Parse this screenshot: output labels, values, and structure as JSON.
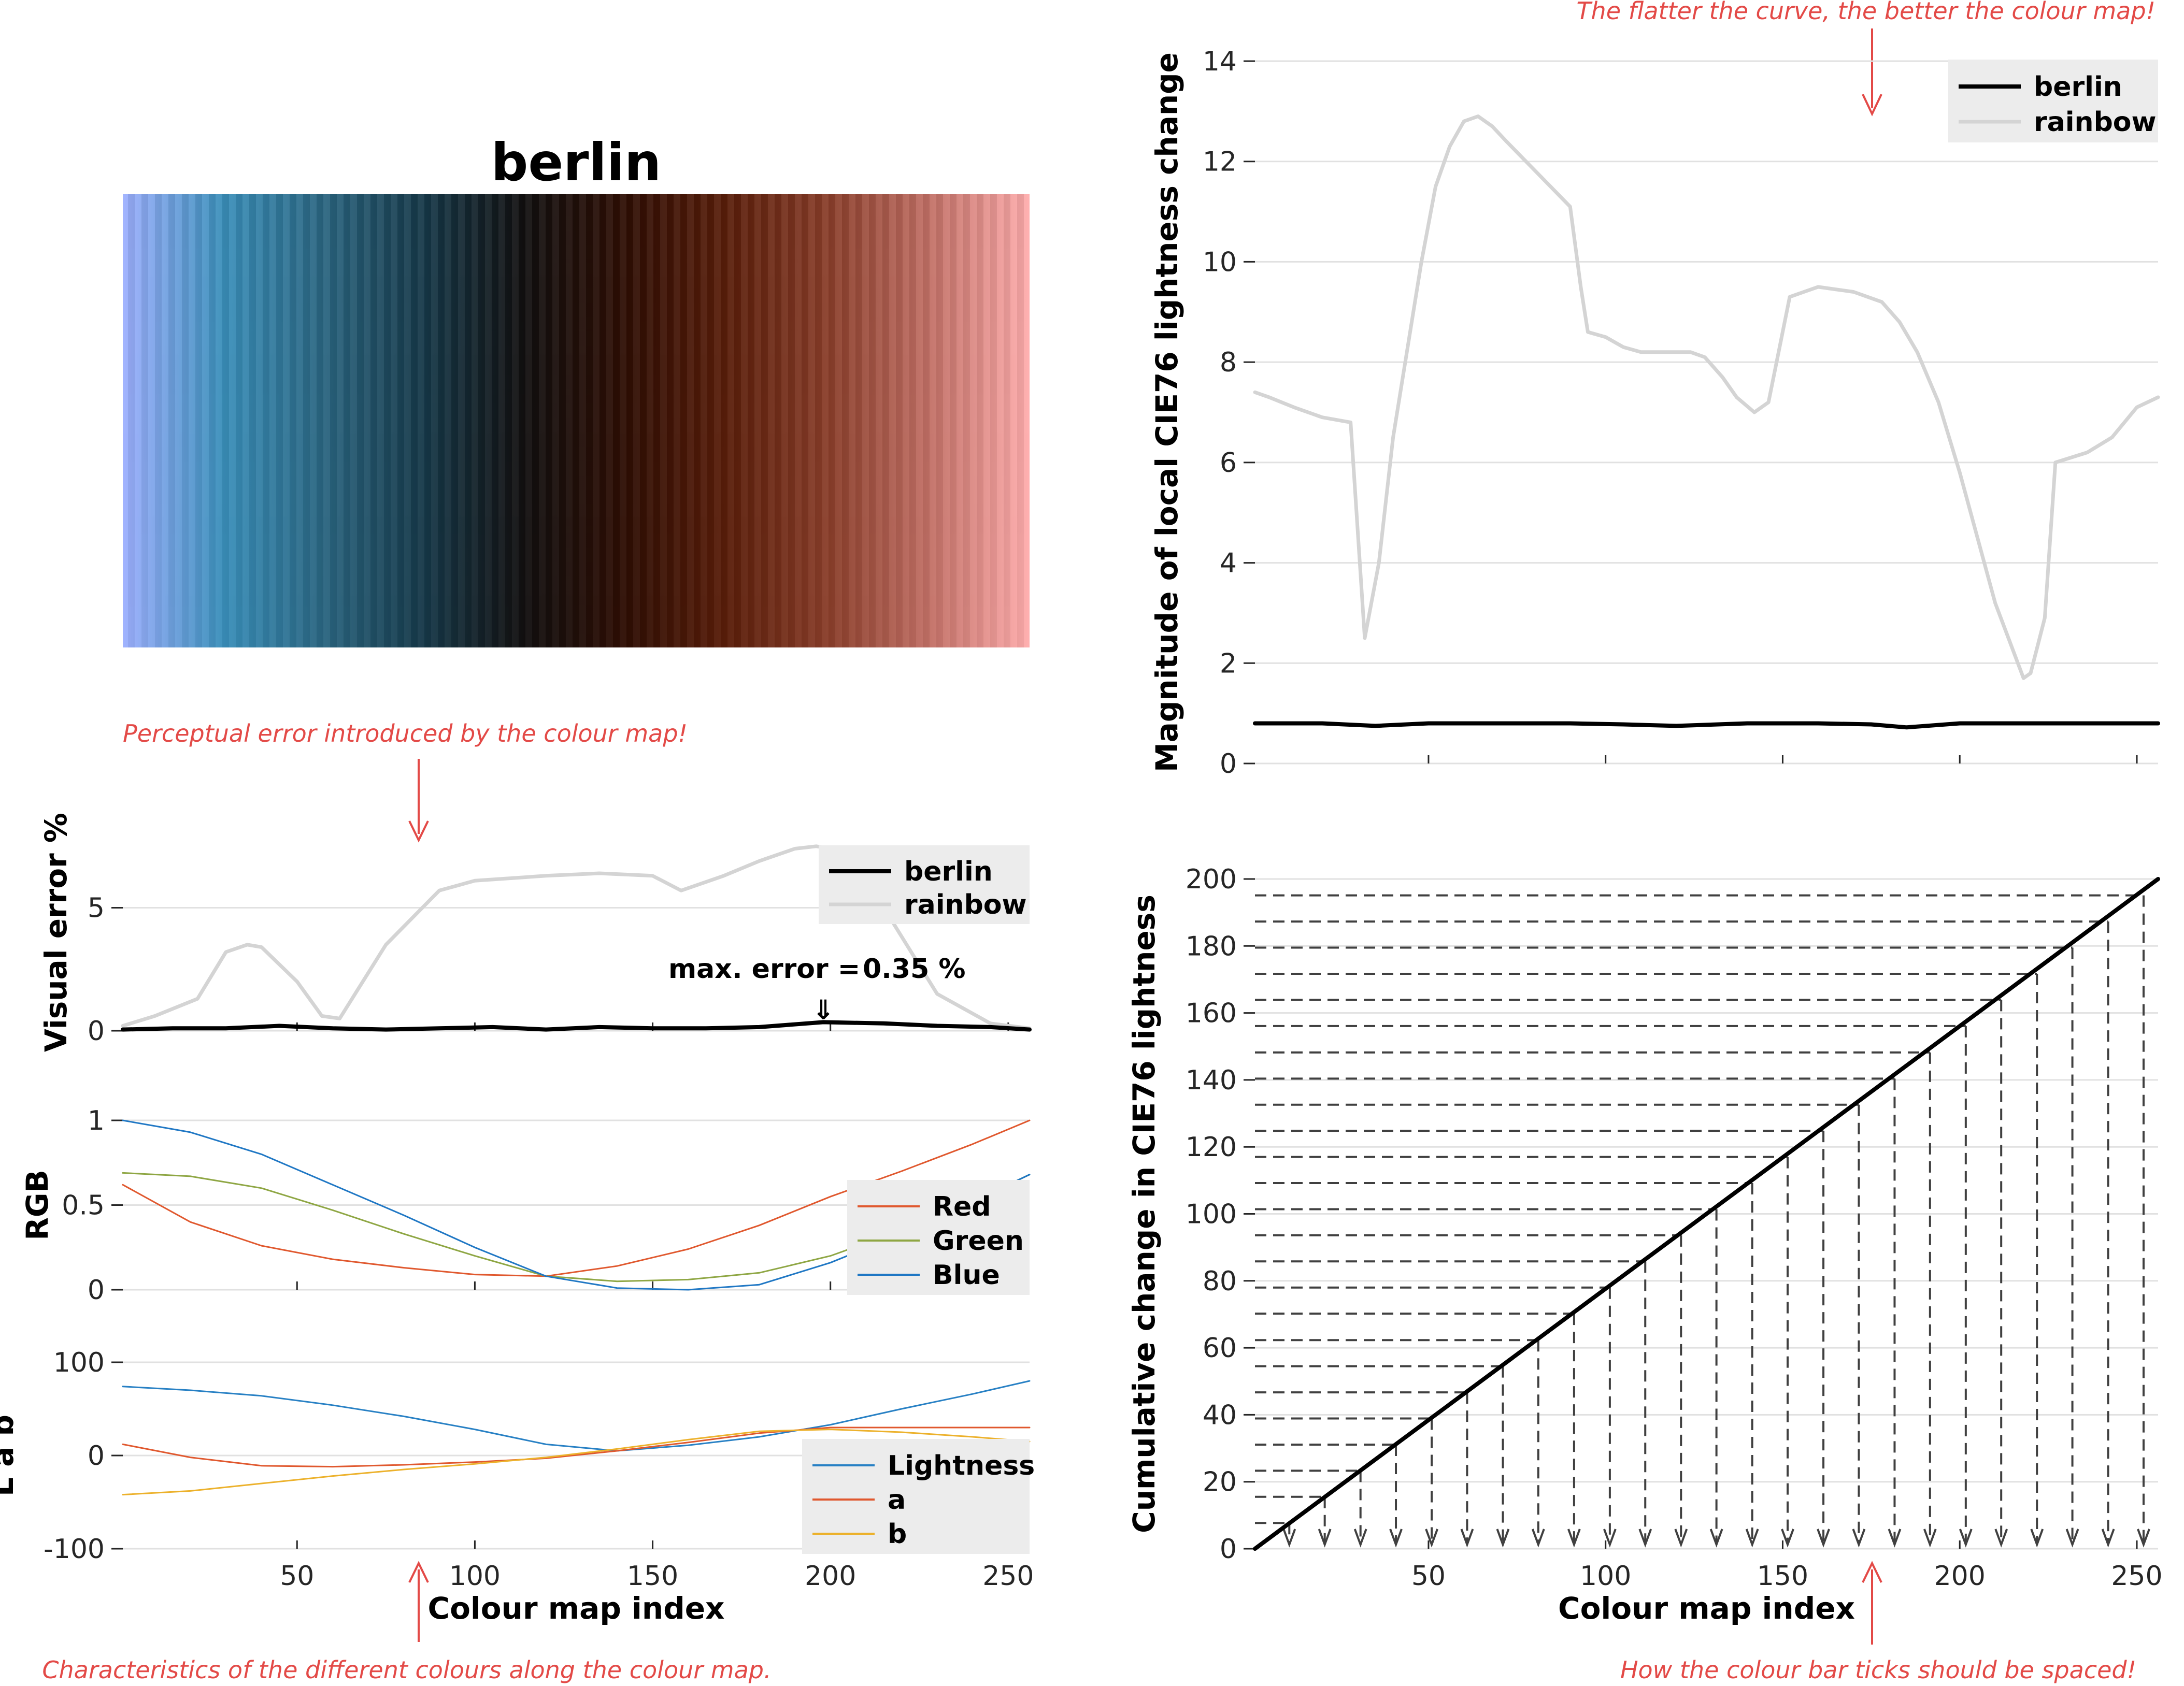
{
  "colors": {
    "berlin": "#000000",
    "rainbow": "#d4d4d4",
    "red": "#e0582e",
    "green": "#8ea643",
    "blue": "#1f77c4",
    "lightness": "#2780c4",
    "a": "#e0582e",
    "b": "#ecb12b",
    "annotation": "#e34a47",
    "legend_bg": "#ececec",
    "colormap_stops": [
      "#9eb0ff",
      "#3a8fba",
      "#2a6580",
      "#163848",
      "#120f0f",
      "#2f0e04",
      "#5a1e0a",
      "#8a3e2a",
      "#c27066",
      "#ffadad"
    ]
  },
  "colormap_panel": {
    "title": "berlin"
  },
  "annotations": {
    "perceptual": "Perceptual error introduced by the colour map!",
    "characteristics": "Characteristics of the different colours along the colour map.",
    "flatter": "The flatter the curve, the better the colour map!",
    "ticks": "How the colour bar ticks should be spaced!"
  },
  "chart_data": [
    {
      "id": "visual-error",
      "type": "line",
      "ylabel": "Visual error %",
      "xlabel": "",
      "xlim": [
        1,
        256
      ],
      "ylim": [
        0,
        8
      ],
      "yticks": [
        0,
        5
      ],
      "xticks": [
        50,
        100,
        150,
        200,
        250
      ],
      "annotation": {
        "label": "max. error =",
        "value": "0.35 %",
        "at_x": 198,
        "arrow": "⇓"
      },
      "legend": [
        "berlin",
        "rainbow"
      ],
      "series": [
        {
          "name": "berlin",
          "x": [
            1,
            15,
            30,
            45,
            60,
            75,
            90,
            105,
            120,
            135,
            150,
            165,
            180,
            198,
            215,
            230,
            245,
            256
          ],
          "values": [
            0.05,
            0.1,
            0.1,
            0.2,
            0.1,
            0.05,
            0.1,
            0.15,
            0.05,
            0.15,
            0.1,
            0.1,
            0.15,
            0.35,
            0.3,
            0.2,
            0.15,
            0.05
          ]
        },
        {
          "name": "rainbow",
          "x": [
            1,
            10,
            22,
            30,
            36,
            40,
            50,
            57,
            62,
            75,
            90,
            100,
            120,
            135,
            150,
            158,
            170,
            180,
            190,
            196,
            205,
            215,
            230,
            245,
            256
          ],
          "values": [
            0.2,
            0.6,
            1.3,
            3.2,
            3.5,
            3.4,
            2.0,
            0.6,
            0.5,
            3.5,
            5.7,
            6.1,
            6.3,
            6.4,
            6.3,
            5.7,
            6.3,
            6.9,
            7.4,
            7.5,
            7.3,
            5.0,
            1.5,
            0.3,
            0.1
          ]
        }
      ]
    },
    {
      "id": "rgb",
      "type": "line",
      "ylabel": "RGB",
      "xlabel": "",
      "xlim": [
        1,
        256
      ],
      "ylim": [
        0,
        1
      ],
      "yticks": [
        0,
        0.5,
        1
      ],
      "xticks": [
        50,
        100,
        150,
        200,
        250
      ],
      "legend": [
        "Red",
        "Green",
        "Blue"
      ],
      "series": [
        {
          "name": "Red",
          "x": [
            1,
            20,
            40,
            60,
            80,
            100,
            120,
            140,
            160,
            180,
            200,
            220,
            240,
            256
          ],
          "values": [
            0.62,
            0.4,
            0.26,
            0.18,
            0.13,
            0.09,
            0.08,
            0.14,
            0.24,
            0.38,
            0.55,
            0.7,
            0.86,
            1.0
          ]
        },
        {
          "name": "Green",
          "x": [
            1,
            20,
            40,
            60,
            80,
            100,
            120,
            140,
            160,
            180,
            200,
            220,
            240,
            256
          ],
          "values": [
            0.69,
            0.67,
            0.6,
            0.47,
            0.33,
            0.2,
            0.08,
            0.05,
            0.06,
            0.1,
            0.2,
            0.35,
            0.52,
            0.68
          ]
        },
        {
          "name": "Blue",
          "x": [
            1,
            20,
            40,
            60,
            80,
            100,
            120,
            140,
            160,
            180,
            200,
            220,
            240,
            256
          ],
          "values": [
            1.0,
            0.93,
            0.8,
            0.62,
            0.44,
            0.25,
            0.08,
            0.01,
            0.0,
            0.03,
            0.16,
            0.33,
            0.52,
            0.68
          ]
        }
      ]
    },
    {
      "id": "lab",
      "type": "line",
      "ylabel": "L a b",
      "xlabel": "Colour map index",
      "xlim": [
        1,
        256
      ],
      "ylim": [
        -100,
        100
      ],
      "yticks": [
        -100,
        0,
        100
      ],
      "xticks": [
        50,
        100,
        150,
        200,
        250
      ],
      "legend": [
        "Lightness",
        "a",
        "b"
      ],
      "series": [
        {
          "name": "Lightness",
          "x": [
            1,
            20,
            40,
            60,
            80,
            100,
            120,
            140,
            160,
            180,
            200,
            220,
            240,
            256
          ],
          "values": [
            74,
            70,
            64,
            54,
            42,
            28,
            12,
            5,
            11,
            20,
            33,
            50,
            66,
            80
          ]
        },
        {
          "name": "a",
          "x": [
            1,
            20,
            40,
            60,
            80,
            100,
            120,
            140,
            160,
            180,
            200,
            220,
            240,
            256
          ],
          "values": [
            12,
            -2,
            -11,
            -12,
            -10,
            -7,
            -3,
            5,
            14,
            24,
            30,
            30,
            30,
            30
          ]
        },
        {
          "name": "b",
          "x": [
            1,
            20,
            40,
            60,
            80,
            100,
            120,
            140,
            160,
            180,
            200,
            220,
            240,
            256
          ],
          "values": [
            -42,
            -38,
            -30,
            -22,
            -15,
            -9,
            -2,
            7,
            17,
            26,
            28,
            25,
            20,
            15
          ]
        }
      ]
    },
    {
      "id": "local-lightness",
      "type": "line",
      "ylabel": "Magnitude of local CIE76 lightness change",
      "xlabel": "",
      "xlim": [
        1,
        256
      ],
      "ylim": [
        0,
        14
      ],
      "yticks": [
        0,
        2,
        4,
        6,
        8,
        10,
        12,
        14
      ],
      "xticks": [
        50,
        100,
        150,
        200,
        250
      ],
      "legend": [
        "berlin",
        "rainbow"
      ],
      "series": [
        {
          "name": "berlin",
          "x": [
            1,
            20,
            35,
            50,
            70,
            90,
            105,
            120,
            140,
            160,
            175,
            185,
            200,
            220,
            240,
            256
          ],
          "values": [
            0.8,
            0.8,
            0.75,
            0.8,
            0.8,
            0.8,
            0.78,
            0.75,
            0.8,
            0.8,
            0.78,
            0.72,
            0.8,
            0.8,
            0.8,
            0.8
          ]
        },
        {
          "name": "rainbow",
          "x": [
            1,
            5,
            12,
            20,
            28,
            32,
            36,
            40,
            48,
            52,
            56,
            60,
            64,
            68,
            72,
            90,
            93,
            95,
            100,
            105,
            110,
            115,
            120,
            124,
            128,
            133,
            137,
            142,
            146,
            152,
            156,
            160,
            170,
            178,
            183,
            188,
            194,
            200,
            210,
            218,
            220,
            224,
            227,
            236,
            243,
            250,
            256
          ],
          "values": [
            7.4,
            7.3,
            7.1,
            6.9,
            6.8,
            2.5,
            4.0,
            6.5,
            10.0,
            11.5,
            12.3,
            12.8,
            12.9,
            12.7,
            12.4,
            11.1,
            9.5,
            8.6,
            8.5,
            8.3,
            8.2,
            8.2,
            8.2,
            8.2,
            8.1,
            7.7,
            7.3,
            7.0,
            7.2,
            9.3,
            9.4,
            9.5,
            9.4,
            9.2,
            8.8,
            8.2,
            7.2,
            5.8,
            3.2,
            1.7,
            1.8,
            2.9,
            6.0,
            6.2,
            6.5,
            7.1,
            7.3
          ]
        }
      ]
    },
    {
      "id": "cumulative",
      "type": "line",
      "ylabel": "Cumulative change in CIE76 lightness",
      "xlabel": "Colour map index",
      "xlim": [
        1,
        256
      ],
      "ylim": [
        0,
        200
      ],
      "yticks": [
        0,
        20,
        40,
        60,
        80,
        100,
        120,
        140,
        160,
        180,
        200
      ],
      "xticks": [
        50,
        100,
        150,
        200,
        250
      ],
      "series": [
        {
          "name": "berlin",
          "x": [
            1,
            256
          ],
          "values": [
            0,
            200
          ]
        }
      ],
      "tick_spacing_guides": {
        "x": [
          10.7,
          20.7,
          30.8,
          40.8,
          50.9,
          60.9,
          71.0,
          81.0,
          91.1,
          101.2,
          111.2,
          121.3,
          131.3,
          141.4,
          151.4,
          161.5,
          171.5,
          181.6,
          191.6,
          201.7,
          211.7,
          221.8,
          231.8,
          241.9,
          251.9
        ],
        "y": [
          7.7,
          15.5,
          23.3,
          31.1,
          38.9,
          46.7,
          54.5,
          62.3,
          70.2,
          78.0,
          85.8,
          93.6,
          101.4,
          109.2,
          117.0,
          124.8,
          132.6,
          140.4,
          148.2,
          156.1,
          163.9,
          171.7,
          179.5,
          187.3,
          195.1
        ]
      }
    }
  ]
}
